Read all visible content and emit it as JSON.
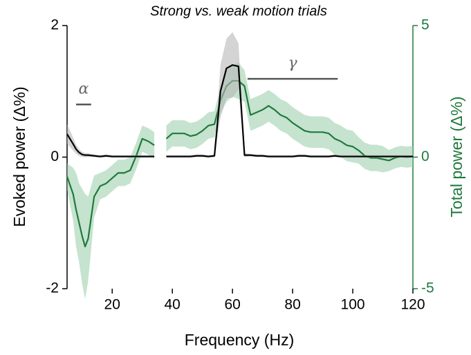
{
  "chart_data": {
    "type": "line",
    "title": "Strong vs. weak motion trials",
    "xlabel": "Frequency (Hz)",
    "ylabel": "Evoked power (Δ%)",
    "y2label": "Total power (Δ%)",
    "x": [
      5,
      7,
      8,
      9,
      10,
      11,
      12,
      14,
      16,
      18,
      20,
      22,
      24,
      26,
      28,
      30,
      32,
      34,
      36,
      38,
      40,
      42,
      44,
      46,
      48,
      50,
      52,
      54,
      56,
      58,
      60,
      62,
      64,
      66,
      68,
      70,
      72,
      74,
      76,
      78,
      80,
      82,
      84,
      86,
      88,
      90,
      92,
      94,
      96,
      98,
      100,
      102,
      104,
      106,
      108,
      110,
      112,
      114,
      116,
      118,
      120
    ],
    "series": [
      {
        "name": "Evoked power",
        "color": "#000000",
        "band_color": "#b8b8b8",
        "values": [
          0.35,
          0.2,
          0.12,
          0.07,
          0.04,
          0.03,
          0.03,
          0.02,
          0.01,
          0.02,
          0.01,
          0.01,
          0.01,
          0.01,
          0.01,
          0.01,
          0.01,
          0.01,
          null,
          0.01,
          0.01,
          0.01,
          0.01,
          0.01,
          0.02,
          0.02,
          0.01,
          0.02,
          1.0,
          1.35,
          1.4,
          1.38,
          0.03,
          0.03,
          0.02,
          0.02,
          0.01,
          0.01,
          0.01,
          0.01,
          0.01,
          0.02,
          0.02,
          0.01,
          0.01,
          0.01,
          0.01,
          0.02,
          0.01,
          0.01,
          0.01,
          0.01,
          0.01,
          0.01,
          0.01,
          0.01,
          0.01,
          0.01,
          0.01,
          0.01,
          0.01
        ],
        "error": [
          0.15,
          0.1,
          0.07,
          0.05,
          0.04,
          0.03,
          0.03,
          0.02,
          0.02,
          0.02,
          0.02,
          0.02,
          0.02,
          0.02,
          0.02,
          0.02,
          0.02,
          0.02,
          null,
          0.02,
          0.02,
          0.02,
          0.02,
          0.02,
          0.02,
          0.02,
          0.02,
          0.02,
          0.4,
          0.45,
          0.5,
          0.35,
          0.03,
          0.02,
          0.02,
          0.02,
          0.02,
          0.02,
          0.02,
          0.02,
          0.02,
          0.02,
          0.02,
          0.02,
          0.02,
          0.02,
          0.02,
          0.02,
          0.02,
          0.02,
          0.02,
          0.02,
          0.02,
          0.02,
          0.02,
          0.02,
          0.02,
          0.02,
          0.02,
          0.02,
          0.02
        ]
      },
      {
        "name": "Total power",
        "color": "#1e7a3c",
        "band_color": "#9fd0ae",
        "axis": "y2",
        "values": [
          -0.74,
          -1.4,
          -2.0,
          -2.5,
          -3.0,
          -3.4,
          -3.1,
          -1.5,
          -1.1,
          -1.0,
          -0.8,
          -0.6,
          -0.6,
          -0.5,
          0.05,
          0.7,
          0.6,
          0.45,
          null,
          0.7,
          0.9,
          0.9,
          0.9,
          0.8,
          0.85,
          1.0,
          1.2,
          1.25,
          2.15,
          2.7,
          2.9,
          2.9,
          2.7,
          1.6,
          1.7,
          1.8,
          1.95,
          1.8,
          1.6,
          1.5,
          1.3,
          1.15,
          1.0,
          0.95,
          0.95,
          0.95,
          0.9,
          0.7,
          0.6,
          0.45,
          0.4,
          0.25,
          0.05,
          -0.03,
          -0.03,
          -0.08,
          -0.13,
          -0.03,
          0.03,
          0,
          0.03
        ],
        "error": [
          0.5,
          1.0,
          1.4,
          1.5,
          1.8,
          2.0,
          1.6,
          0.8,
          0.5,
          0.5,
          0.5,
          0.5,
          0.5,
          0.5,
          0.5,
          0.5,
          0.5,
          0.5,
          null,
          0.5,
          0.5,
          0.5,
          0.5,
          0.5,
          0.5,
          0.5,
          0.5,
          0.5,
          0.5,
          0.6,
          0.6,
          0.7,
          0.6,
          0.6,
          0.6,
          0.6,
          0.6,
          0.6,
          0.6,
          0.6,
          0.6,
          0.6,
          0.6,
          0.6,
          0.6,
          0.6,
          0.6,
          0.6,
          0.6,
          0.6,
          0.6,
          0.5,
          0.5,
          0.5,
          0.5,
          0.5,
          0.4,
          0.4,
          0.4,
          0.4,
          0.4
        ]
      }
    ],
    "xlim": [
      5,
      120
    ],
    "xticks": [
      20,
      40,
      60,
      80,
      100,
      120
    ],
    "ylim": [
      -2,
      2
    ],
    "yticks": [
      -2,
      0,
      2
    ],
    "y2lim": [
      -5,
      5
    ],
    "y2ticks": [
      -5,
      0,
      5
    ],
    "annotations": [
      {
        "text": "α",
        "x_range": [
          8,
          13
        ],
        "y": 0.8
      },
      {
        "text": "γ",
        "x_range": [
          65,
          95
        ],
        "y": 1.19
      }
    ]
  }
}
